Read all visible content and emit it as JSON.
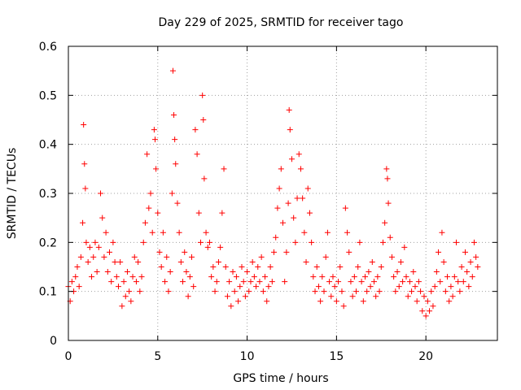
{
  "chart_data": {
    "type": "scatter",
    "title": "Day 229 of 2025, SRMTID for receiver tago",
    "xlabel": "GPS time / hours",
    "ylabel": "SRMTID / TECUs",
    "xlim": [
      0,
      24
    ],
    "ylim": [
      0,
      0.6
    ],
    "xticks": [
      0,
      5,
      10,
      15,
      20
    ],
    "yticks": [
      0,
      0.1,
      0.2,
      0.3,
      0.4,
      0.5,
      0.6
    ],
    "xtick_labels": [
      "0",
      "5",
      "10",
      "15",
      "20"
    ],
    "ytick_labels": [
      "0",
      "0.1",
      "0.2",
      "0.3",
      "0.4",
      "0.5",
      "0.6"
    ],
    "grid": true,
    "marker": "+",
    "color": "#ff0000",
    "series": [
      {
        "name": "SRMTID",
        "points": [
          [
            0.0,
            0.11
          ],
          [
            0.1,
            0.08
          ],
          [
            0.2,
            0.12
          ],
          [
            0.3,
            0.1
          ],
          [
            0.4,
            0.13
          ],
          [
            0.5,
            0.15
          ],
          [
            0.6,
            0.11
          ],
          [
            0.7,
            0.17
          ],
          [
            0.8,
            0.24
          ],
          [
            0.85,
            0.44
          ],
          [
            0.9,
            0.36
          ],
          [
            0.95,
            0.31
          ],
          [
            1.0,
            0.2
          ],
          [
            1.1,
            0.16
          ],
          [
            1.2,
            0.19
          ],
          [
            1.3,
            0.13
          ],
          [
            1.4,
            0.17
          ],
          [
            1.5,
            0.2
          ],
          [
            1.6,
            0.14
          ],
          [
            1.7,
            0.19
          ],
          [
            1.8,
            0.3
          ],
          [
            1.9,
            0.25
          ],
          [
            2.0,
            0.17
          ],
          [
            2.1,
            0.22
          ],
          [
            2.2,
            0.14
          ],
          [
            2.3,
            0.18
          ],
          [
            2.4,
            0.12
          ],
          [
            2.5,
            0.2
          ],
          [
            2.6,
            0.16
          ],
          [
            2.7,
            0.13
          ],
          [
            2.8,
            0.11
          ],
          [
            2.9,
            0.16
          ],
          [
            3.0,
            0.07
          ],
          [
            3.1,
            0.12
          ],
          [
            3.2,
            0.09
          ],
          [
            3.3,
            0.14
          ],
          [
            3.4,
            0.1
          ],
          [
            3.5,
            0.08
          ],
          [
            3.6,
            0.13
          ],
          [
            3.7,
            0.17
          ],
          [
            3.8,
            0.12
          ],
          [
            3.9,
            0.16
          ],
          [
            4.0,
            0.1
          ],
          [
            4.1,
            0.13
          ],
          [
            4.2,
            0.2
          ],
          [
            4.3,
            0.24
          ],
          [
            4.4,
            0.38
          ],
          [
            4.5,
            0.27
          ],
          [
            4.6,
            0.3
          ],
          [
            4.7,
            0.22
          ],
          [
            4.8,
            0.43
          ],
          [
            4.85,
            0.41
          ],
          [
            4.9,
            0.35
          ],
          [
            5.0,
            0.26
          ],
          [
            5.1,
            0.18
          ],
          [
            5.2,
            0.15
          ],
          [
            5.3,
            0.22
          ],
          [
            5.4,
            0.12
          ],
          [
            5.5,
            0.17
          ],
          [
            5.6,
            0.1
          ],
          [
            5.7,
            0.14
          ],
          [
            5.8,
            0.3
          ],
          [
            5.85,
            0.55
          ],
          [
            5.9,
            0.46
          ],
          [
            5.95,
            0.41
          ],
          [
            6.0,
            0.36
          ],
          [
            6.1,
            0.28
          ],
          [
            6.2,
            0.22
          ],
          [
            6.3,
            0.16
          ],
          [
            6.4,
            0.12
          ],
          [
            6.5,
            0.18
          ],
          [
            6.6,
            0.14
          ],
          [
            6.7,
            0.09
          ],
          [
            6.8,
            0.13
          ],
          [
            6.9,
            0.17
          ],
          [
            7.0,
            0.11
          ],
          [
            7.1,
            0.43
          ],
          [
            7.2,
            0.38
          ],
          [
            7.3,
            0.26
          ],
          [
            7.4,
            0.2
          ],
          [
            7.5,
            0.5
          ],
          [
            7.55,
            0.45
          ],
          [
            7.6,
            0.33
          ],
          [
            7.7,
            0.22
          ],
          [
            7.8,
            0.19
          ],
          [
            7.9,
            0.2
          ],
          [
            8.0,
            0.13
          ],
          [
            8.1,
            0.15
          ],
          [
            8.2,
            0.1
          ],
          [
            8.3,
            0.12
          ],
          [
            8.4,
            0.16
          ],
          [
            8.5,
            0.19
          ],
          [
            8.6,
            0.26
          ],
          [
            8.7,
            0.35
          ],
          [
            8.8,
            0.15
          ],
          [
            8.9,
            0.09
          ],
          [
            9.0,
            0.12
          ],
          [
            9.1,
            0.07
          ],
          [
            9.2,
            0.14
          ],
          [
            9.3,
            0.1
          ],
          [
            9.4,
            0.13
          ],
          [
            9.5,
            0.08
          ],
          [
            9.6,
            0.11
          ],
          [
            9.7,
            0.15
          ],
          [
            9.8,
            0.12
          ],
          [
            9.9,
            0.09
          ],
          [
            10.0,
            0.14
          ],
          [
            10.1,
            0.1
          ],
          [
            10.2,
            0.12
          ],
          [
            10.3,
            0.16
          ],
          [
            10.4,
            0.13
          ],
          [
            10.5,
            0.11
          ],
          [
            10.6,
            0.15
          ],
          [
            10.7,
            0.12
          ],
          [
            10.8,
            0.17
          ],
          [
            10.9,
            0.1
          ],
          [
            11.0,
            0.13
          ],
          [
            11.1,
            0.08
          ],
          [
            11.2,
            0.11
          ],
          [
            11.3,
            0.15
          ],
          [
            11.4,
            0.12
          ],
          [
            11.5,
            0.18
          ],
          [
            11.6,
            0.21
          ],
          [
            11.7,
            0.27
          ],
          [
            11.8,
            0.31
          ],
          [
            11.9,
            0.35
          ],
          [
            12.0,
            0.24
          ],
          [
            12.1,
            0.12
          ],
          [
            12.2,
            0.18
          ],
          [
            12.3,
            0.28
          ],
          [
            12.35,
            0.47
          ],
          [
            12.4,
            0.43
          ],
          [
            12.5,
            0.37
          ],
          [
            12.6,
            0.25
          ],
          [
            12.7,
            0.2
          ],
          [
            12.8,
            0.29
          ],
          [
            12.9,
            0.38
          ],
          [
            13.0,
            0.35
          ],
          [
            13.1,
            0.29
          ],
          [
            13.2,
            0.22
          ],
          [
            13.3,
            0.16
          ],
          [
            13.4,
            0.31
          ],
          [
            13.5,
            0.26
          ],
          [
            13.6,
            0.2
          ],
          [
            13.7,
            0.13
          ],
          [
            13.8,
            0.1
          ],
          [
            13.9,
            0.15
          ],
          [
            14.0,
            0.11
          ],
          [
            14.1,
            0.08
          ],
          [
            14.2,
            0.13
          ],
          [
            14.3,
            0.1
          ],
          [
            14.4,
            0.17
          ],
          [
            14.5,
            0.22
          ],
          [
            14.6,
            0.12
          ],
          [
            14.7,
            0.09
          ],
          [
            14.8,
            0.13
          ],
          [
            14.9,
            0.11
          ],
          [
            15.0,
            0.08
          ],
          [
            15.1,
            0.12
          ],
          [
            15.2,
            0.15
          ],
          [
            15.3,
            0.1
          ],
          [
            15.4,
            0.07
          ],
          [
            15.5,
            0.27
          ],
          [
            15.6,
            0.22
          ],
          [
            15.7,
            0.18
          ],
          [
            15.8,
            0.12
          ],
          [
            15.9,
            0.09
          ],
          [
            16.0,
            0.13
          ],
          [
            16.1,
            0.1
          ],
          [
            16.2,
            0.15
          ],
          [
            16.3,
            0.2
          ],
          [
            16.4,
            0.12
          ],
          [
            16.5,
            0.08
          ],
          [
            16.6,
            0.13
          ],
          [
            16.7,
            0.1
          ],
          [
            16.8,
            0.14
          ],
          [
            16.9,
            0.11
          ],
          [
            17.0,
            0.16
          ],
          [
            17.1,
            0.12
          ],
          [
            17.2,
            0.09
          ],
          [
            17.3,
            0.13
          ],
          [
            17.4,
            0.1
          ],
          [
            17.5,
            0.15
          ],
          [
            17.6,
            0.2
          ],
          [
            17.7,
            0.24
          ],
          [
            17.8,
            0.35
          ],
          [
            17.85,
            0.33
          ],
          [
            17.9,
            0.28
          ],
          [
            18.0,
            0.21
          ],
          [
            18.1,
            0.17
          ],
          [
            18.2,
            0.13
          ],
          [
            18.3,
            0.1
          ],
          [
            18.4,
            0.14
          ],
          [
            18.5,
            0.11
          ],
          [
            18.6,
            0.16
          ],
          [
            18.7,
            0.12
          ],
          [
            18.8,
            0.19
          ],
          [
            18.9,
            0.13
          ],
          [
            19.0,
            0.09
          ],
          [
            19.1,
            0.12
          ],
          [
            19.2,
            0.1
          ],
          [
            19.3,
            0.14
          ],
          [
            19.4,
            0.11
          ],
          [
            19.5,
            0.08
          ],
          [
            19.6,
            0.12
          ],
          [
            19.7,
            0.1
          ],
          [
            19.8,
            0.06
          ],
          [
            19.9,
            0.09
          ],
          [
            20.0,
            0.05
          ],
          [
            20.1,
            0.08
          ],
          [
            20.2,
            0.06
          ],
          [
            20.3,
            0.1
          ],
          [
            20.4,
            0.07
          ],
          [
            20.5,
            0.11
          ],
          [
            20.6,
            0.14
          ],
          [
            20.7,
            0.18
          ],
          [
            20.8,
            0.12
          ],
          [
            20.9,
            0.22
          ],
          [
            21.0,
            0.16
          ],
          [
            21.1,
            0.1
          ],
          [
            21.2,
            0.13
          ],
          [
            21.3,
            0.08
          ],
          [
            21.4,
            0.11
          ],
          [
            21.5,
            0.09
          ],
          [
            21.6,
            0.13
          ],
          [
            21.7,
            0.2
          ],
          [
            21.8,
            0.12
          ],
          [
            21.9,
            0.1
          ],
          [
            22.0,
            0.15
          ],
          [
            22.1,
            0.12
          ],
          [
            22.2,
            0.18
          ],
          [
            22.3,
            0.14
          ],
          [
            22.4,
            0.11
          ],
          [
            22.5,
            0.16
          ],
          [
            22.6,
            0.13
          ],
          [
            22.7,
            0.2
          ],
          [
            22.8,
            0.17
          ],
          [
            22.9,
            0.15
          ]
        ]
      }
    ]
  }
}
